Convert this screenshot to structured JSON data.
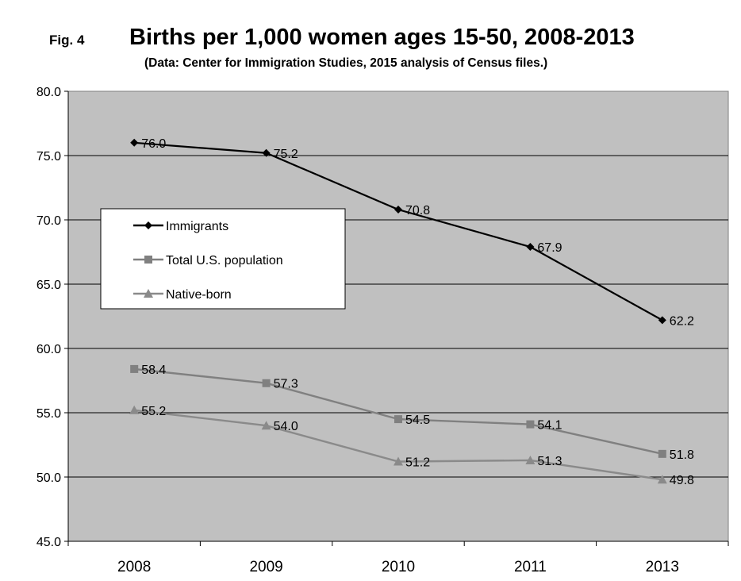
{
  "figure": {
    "label": "Fig. 4",
    "title": "Births per 1,000 women ages 15-50, 2008-2013",
    "subtitle": "(Data: Center for Immigration Studies, 2015 analysis of Census files.)"
  },
  "chart_data": {
    "type": "line",
    "title": "Births per 1,000 women ages 15-50, 2008-2013",
    "subtitle": "(Data: Center for Immigration Studies, 2015 analysis of Census files.)",
    "categories": [
      "2008",
      "2009",
      "2010",
      "2011",
      "2013"
    ],
    "ylim": [
      45,
      80
    ],
    "yticks": [
      "45.0",
      "50.0",
      "55.0",
      "60.0",
      "65.0",
      "70.0",
      "75.0",
      "80.0"
    ],
    "grid": true,
    "legend_position": "left",
    "plot_background": "#c0c0c0",
    "series": [
      {
        "name": "Immigrants",
        "marker": "diamond",
        "color": "#000000",
        "values": [
          76.0,
          75.2,
          70.8,
          67.9,
          62.2
        ],
        "labels": [
          "76.0",
          "75.2",
          "70.8",
          "67.9",
          "62.2"
        ]
      },
      {
        "name": "Total U.S. population",
        "marker": "square",
        "color": "#808080",
        "values": [
          58.4,
          57.3,
          54.5,
          54.1,
          51.8
        ],
        "labels": [
          "58.4",
          "57.3",
          "54.5",
          "54.1",
          "51.8"
        ]
      },
      {
        "name": "Native-born",
        "marker": "triangle",
        "color": "#8a8a8a",
        "values": [
          55.2,
          54.0,
          51.2,
          51.3,
          49.8
        ],
        "labels": [
          "55.2",
          "54.0",
          "51.2",
          "51.3",
          "49.8"
        ]
      }
    ]
  }
}
